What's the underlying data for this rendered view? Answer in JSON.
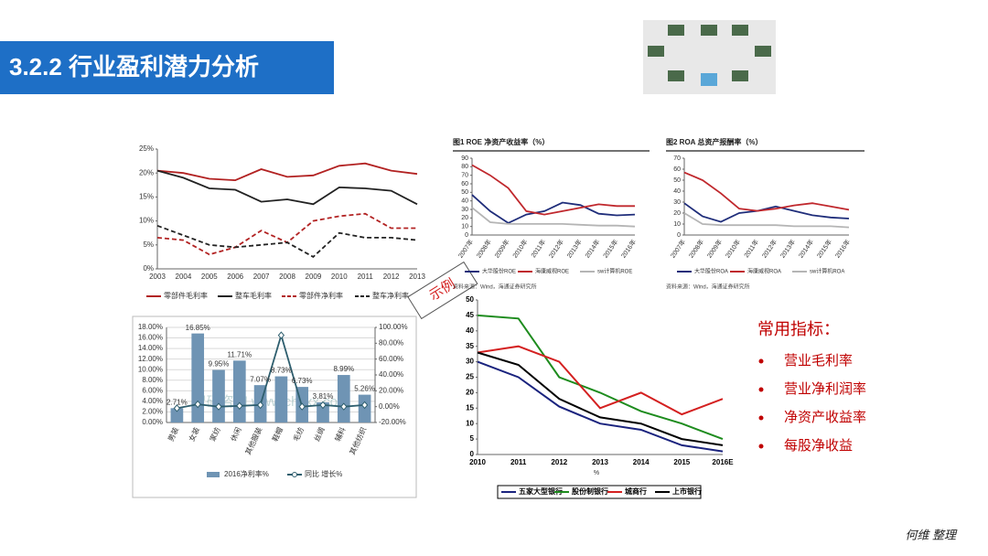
{
  "slide_title": "3.2.2 行业盈利潜力分析",
  "annotation": "示例",
  "indicators": {
    "heading": "常用指标：",
    "items": [
      "营业毛利率",
      "营业净利润率",
      "净资产收益率",
      "每股净收益"
    ]
  },
  "footer": "何维 整理",
  "chart_data": [
    {
      "type": "line",
      "categories": [
        "2003",
        "2004",
        "2005",
        "2006",
        "2007",
        "2008",
        "2009",
        "2010",
        "2011",
        "2012",
        "2013"
      ],
      "ylim": [
        0,
        25
      ],
      "yticks": [
        {
          "value": 0,
          "label": "0%"
        },
        {
          "value": 5,
          "label": "5%"
        },
        {
          "value": 10,
          "label": "10%"
        },
        {
          "value": 15,
          "label": "15%"
        },
        {
          "value": 20,
          "label": "20%"
        },
        {
          "value": 25,
          "label": "25%"
        }
      ],
      "grid": false,
      "series": [
        {
          "name": "零部件毛利率",
          "color": "#b22222",
          "dash": false,
          "values": [
            20.5,
            20,
            18.8,
            18.5,
            20.8,
            19.2,
            19.5,
            21.5,
            22,
            20.5,
            19.8
          ]
        },
        {
          "name": "整车毛利率",
          "color": "#222222",
          "dash": false,
          "values": [
            20.5,
            19,
            16.8,
            16.5,
            14,
            14.5,
            13.5,
            17,
            16.8,
            16.3,
            13.5
          ]
        },
        {
          "name": "零部件净利率",
          "color": "#b22222",
          "dash": true,
          "values": [
            6.5,
            6,
            3,
            4.5,
            8,
            5.5,
            10,
            11,
            11.5,
            8.5,
            8.5
          ]
        },
        {
          "name": "整车净利率",
          "color": "#222222",
          "dash": true,
          "values": [
            9,
            7,
            5,
            4.5,
            5,
            5.5,
            2.5,
            7.5,
            6.5,
            6.5,
            6
          ]
        }
      ]
    },
    {
      "type": "bar",
      "categories": [
        "男装",
        "女装",
        "家纺",
        "休闲",
        "其他服装",
        "鞋帽",
        "毛纺",
        "丝绸",
        "辅料",
        "其他纺织"
      ],
      "watermark": "智研咨询 www.chyxx.com",
      "ylim": [
        0,
        18
      ],
      "yticks": [
        {
          "value": 0,
          "label": "0.00%"
        },
        {
          "value": 2,
          "label": "2.00%"
        },
        {
          "value": 4,
          "label": "4.00%"
        },
        {
          "value": 6,
          "label": "6.00%"
        },
        {
          "value": 8,
          "label": "8.00%"
        },
        {
          "value": 10,
          "label": "10.00%"
        },
        {
          "value": 12,
          "label": "12.00%"
        },
        {
          "value": 14,
          "label": "14.00%"
        },
        {
          "value": 16,
          "label": "16.00%"
        },
        {
          "value": 18,
          "label": "18.00%"
        }
      ],
      "y2lim": [
        -20,
        100
      ],
      "y2ticks": [
        {
          "value": -20,
          "label": "-20.00%"
        },
        {
          "value": 0,
          "label": "0.00%"
        },
        {
          "value": 20,
          "label": "20.00%"
        },
        {
          "value": 40,
          "label": "40.00%"
        },
        {
          "value": 60,
          "label": "60.00%"
        },
        {
          "value": 80,
          "label": "80.00%"
        },
        {
          "value": 100,
          "label": "100.00%"
        }
      ],
      "grid": true,
      "series": [
        {
          "name": "2016净利率%",
          "color": "#6f94b4",
          "values": [
            2.71,
            16.85,
            9.95,
            11.71,
            7.07,
            8.73,
            6.73,
            3.81,
            8.99,
            5.26
          ],
          "value_labels": [
            "2.71%",
            "16.85%",
            "9.95%",
            "11.71%",
            "7.07%",
            "8.73%",
            "6.73%",
            "3.81%",
            "8.99%",
            "5.26%"
          ]
        },
        {
          "name": "同比 增长%",
          "color": "#2e5e6e",
          "axis": "y2",
          "values": [
            -2,
            3,
            0,
            1,
            2,
            90,
            0,
            2,
            0,
            2
          ]
        }
      ]
    },
    {
      "type": "line",
      "title": "图1 ROE 净资产收益率（%）",
      "source": "资料来源：Wind，海通证券研究所",
      "categories": [
        "2007年",
        "2008年",
        "2009年",
        "2010年",
        "2011年",
        "2012年",
        "2013年",
        "2014年",
        "2015年",
        "2016年"
      ],
      "ylim": [
        0,
        90
      ],
      "yticks": [
        0,
        10,
        20,
        30,
        40,
        50,
        60,
        70,
        80,
        90
      ],
      "grid": false,
      "series": [
        {
          "name": "大华股份ROE",
          "color": "#1f2d7a",
          "values": [
            47,
            28,
            14,
            24,
            28,
            38,
            35,
            25,
            23,
            24
          ]
        },
        {
          "name": "海康威视ROE",
          "color": "#c0282d",
          "values": [
            82,
            70,
            55,
            28,
            24,
            28,
            32,
            36,
            34,
            34
          ]
        },
        {
          "name": "sw计算机ROE",
          "color": "#b5b5b5",
          "values": [
            32,
            15,
            13,
            13,
            13,
            13,
            12,
            11,
            11,
            10
          ]
        }
      ]
    },
    {
      "type": "line",
      "title": "图2 ROA 总资产报酬率（%）",
      "source": "资料来源：Wind，海通证券研究所",
      "categories": [
        "2007年",
        "2008年",
        "2009年",
        "2010年",
        "2011年",
        "2012年",
        "2013年",
        "2014年",
        "2015年",
        "2016年"
      ],
      "ylim": [
        0,
        70
      ],
      "yticks": [
        0,
        10,
        20,
        30,
        40,
        50,
        60,
        70
      ],
      "grid": false,
      "series": [
        {
          "name": "大华股份ROA",
          "color": "#1f2d7a",
          "values": [
            29,
            17,
            12,
            20,
            22,
            26,
            22,
            18,
            16,
            15
          ]
        },
        {
          "name": "海康威视ROA",
          "color": "#c0282d",
          "values": [
            57,
            50,
            38,
            24,
            22,
            24,
            27,
            29,
            26,
            23
          ]
        },
        {
          "name": "sw计算机ROA",
          "color": "#b5b5b5",
          "values": [
            20,
            10,
            9,
            9,
            9,
            9,
            8,
            8,
            8,
            7
          ]
        }
      ]
    },
    {
      "type": "line",
      "x_label": "%",
      "categories": [
        "2010",
        "2011",
        "2012",
        "2013",
        "2014",
        "2015",
        "2016E"
      ],
      "ylim": [
        0,
        50
      ],
      "yticks": [
        0,
        5,
        10,
        15,
        20,
        25,
        30,
        35,
        40,
        45,
        50
      ],
      "grid": false,
      "series": [
        {
          "name": "五家大型银行",
          "color": "#1a237e",
          "values": [
            30,
            25,
            15.5,
            10,
            8,
            3,
            1
          ]
        },
        {
          "name": "股份制银行",
          "color": "#1e8c1e",
          "values": [
            45,
            44,
            25,
            20,
            14,
            10,
            5
          ]
        },
        {
          "name": "城商行",
          "color": "#d42020",
          "values": [
            33,
            35,
            30,
            15,
            20,
            13,
            18
          ]
        },
        {
          "name": "上市银行",
          "color": "#000000",
          "values": [
            33,
            29,
            18,
            12,
            10,
            5,
            3
          ]
        }
      ]
    }
  ]
}
